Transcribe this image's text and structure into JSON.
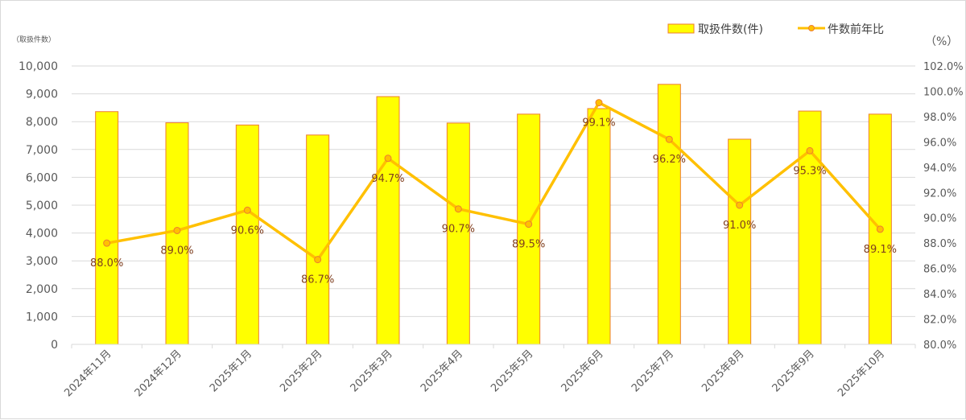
{
  "chart_data": {
    "type": "bar+line",
    "title": "",
    "categories": [
      "2024年11月",
      "2024年12月",
      "2025年1月",
      "2025年2月",
      "2025年3月",
      "2025年4月",
      "2025年5月",
      "2025年6月",
      "2025年7月",
      "2025年8月",
      "2025年9月",
      "2025年10月"
    ],
    "series": [
      {
        "name": "取扱件数(件)",
        "type": "bar",
        "axis": "left",
        "color": "#FFFF00",
        "border": "#ED7D31",
        "values": [
          8360,
          7960,
          7880,
          7520,
          8900,
          7950,
          8270,
          8470,
          9340,
          7370,
          8380,
          8270
        ]
      },
      {
        "name": "件数前年比",
        "type": "line",
        "axis": "right",
        "color": "#FFC000",
        "marker_border": "#ED7D31",
        "values": [
          88.0,
          89.0,
          90.6,
          86.7,
          94.7,
          90.7,
          89.5,
          99.1,
          96.2,
          91.0,
          95.3,
          89.1
        ],
        "labels": [
          "88.0%",
          "89.0%",
          "90.6%",
          "86.7%",
          "94.7%",
          "90.7%",
          "89.5%",
          "99.1%",
          "96.2%",
          "91.0%",
          "95.3%",
          "89.1%"
        ]
      }
    ],
    "ylabel_left": "（取扱件数）",
    "ylabel_right": "（%）",
    "ylim_left": [
      0,
      10000
    ],
    "ylim_right": [
      80,
      102
    ],
    "yticks_left": [
      "0",
      "1,000",
      "2,000",
      "3,000",
      "4,000",
      "5,000",
      "6,000",
      "7,000",
      "8,000",
      "9,000",
      "10,000"
    ],
    "yticks_right": [
      "80.0%",
      "82.0%",
      "84.0%",
      "86.0%",
      "88.0%",
      "90.0%",
      "92.0%",
      "94.0%",
      "96.0%",
      "98.0%",
      "100.0%",
      "102.0%"
    ],
    "grid": true,
    "legend_position": "top-right"
  },
  "legend": {
    "bar_label": "取扱件数(件)",
    "line_label": "件数前年比"
  },
  "axes": {
    "left_unit": "（取扱件数）",
    "right_unit": "（%）"
  }
}
